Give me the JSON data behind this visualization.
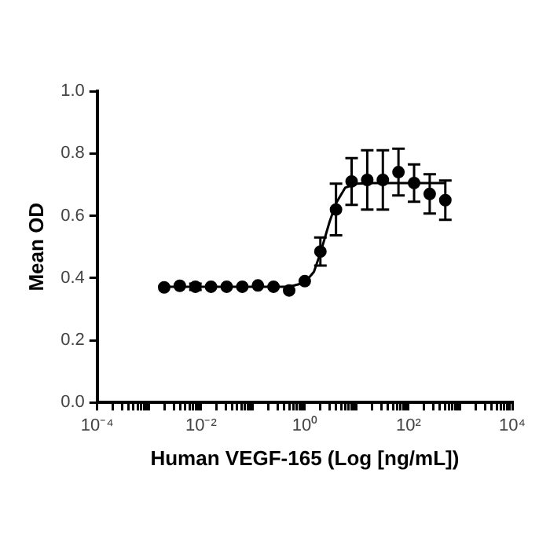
{
  "chart_data": {
    "type": "scatter",
    "xlabel": "Human VEGF-165 (Log [ng/mL])",
    "ylabel": "Mean OD",
    "log": "x",
    "grid": false,
    "legend": false,
    "marker": "circle",
    "xlim": [
      0.0001,
      10000
    ],
    "xticks": [
      {
        "value": 0.0001,
        "label": "10⁻⁴"
      },
      {
        "value": 0.0002,
        "label": null
      },
      {
        "value": 0.0003,
        "label": null
      },
      {
        "value": 0.0004,
        "label": null
      },
      {
        "value": 0.0005,
        "label": null
      },
      {
        "value": 0.0006,
        "label": null
      },
      {
        "value": 0.0007,
        "label": null
      },
      {
        "value": 0.0008,
        "label": null
      },
      {
        "value": 0.0009,
        "label": null
      },
      {
        "value": 0.001,
        "label": null
      },
      {
        "value": 0.002,
        "label": null
      },
      {
        "value": 0.003,
        "label": null
      },
      {
        "value": 0.004,
        "label": null
      },
      {
        "value": 0.005,
        "label": null
      },
      {
        "value": 0.006,
        "label": null
      },
      {
        "value": 0.007,
        "label": null
      },
      {
        "value": 0.008,
        "label": null
      },
      {
        "value": 0.009,
        "label": null
      },
      {
        "value": 0.01,
        "label": "10⁻²"
      },
      {
        "value": 0.02,
        "label": null
      },
      {
        "value": 0.03,
        "label": null
      },
      {
        "value": 0.04,
        "label": null
      },
      {
        "value": 0.05,
        "label": null
      },
      {
        "value": 0.06,
        "label": null
      },
      {
        "value": 0.07,
        "label": null
      },
      {
        "value": 0.08,
        "label": null
      },
      {
        "value": 0.09,
        "label": null
      },
      {
        "value": 0.1,
        "label": null
      },
      {
        "value": 0.2,
        "label": null
      },
      {
        "value": 0.3,
        "label": null
      },
      {
        "value": 0.4,
        "label": null
      },
      {
        "value": 0.5,
        "label": null
      },
      {
        "value": 0.6,
        "label": null
      },
      {
        "value": 0.7,
        "label": null
      },
      {
        "value": 0.8,
        "label": null
      },
      {
        "value": 0.9,
        "label": null
      },
      {
        "value": 1,
        "label": "10⁰"
      },
      {
        "value": 2,
        "label": null
      },
      {
        "value": 3,
        "label": null
      },
      {
        "value": 4,
        "label": null
      },
      {
        "value": 5,
        "label": null
      },
      {
        "value": 6,
        "label": null
      },
      {
        "value": 7,
        "label": null
      },
      {
        "value": 8,
        "label": null
      },
      {
        "value": 9,
        "label": null
      },
      {
        "value": 10,
        "label": null
      },
      {
        "value": 20,
        "label": null
      },
      {
        "value": 30,
        "label": null
      },
      {
        "value": 40,
        "label": null
      },
      {
        "value": 50,
        "label": null
      },
      {
        "value": 60,
        "label": null
      },
      {
        "value": 70,
        "label": null
      },
      {
        "value": 80,
        "label": null
      },
      {
        "value": 90,
        "label": null
      },
      {
        "value": 100,
        "label": "10²"
      },
      {
        "value": 200,
        "label": null
      },
      {
        "value": 300,
        "label": null
      },
      {
        "value": 400,
        "label": null
      },
      {
        "value": 500,
        "label": null
      },
      {
        "value": 600,
        "label": null
      },
      {
        "value": 700,
        "label": null
      },
      {
        "value": 800,
        "label": null
      },
      {
        "value": 900,
        "label": null
      },
      {
        "value": 1000,
        "label": null
      },
      {
        "value": 2000,
        "label": null
      },
      {
        "value": 3000,
        "label": null
      },
      {
        "value": 4000,
        "label": null
      },
      {
        "value": 5000,
        "label": null
      },
      {
        "value": 6000,
        "label": null
      },
      {
        "value": 7000,
        "label": null
      },
      {
        "value": 8000,
        "label": null
      },
      {
        "value": 9000,
        "label": null
      },
      {
        "value": 10000,
        "label": "10⁴"
      }
    ],
    "ylim": [
      0,
      1
    ],
    "yticks": [
      {
        "value": 0,
        "label": "0.0"
      },
      {
        "value": 0.2,
        "label": "0.2"
      },
      {
        "value": 0.4,
        "label": "0.4"
      },
      {
        "value": 0.6,
        "label": "0.6"
      },
      {
        "value": 0.8,
        "label": "0.8"
      },
      {
        "value": 1,
        "label": "1.0"
      }
    ],
    "series": [
      {
        "color": "#000000",
        "x": [
          0.00195,
          0.0039,
          0.0078,
          0.0156,
          0.03125,
          0.0625,
          0.125,
          0.25,
          0.5,
          1,
          2,
          4,
          8,
          16,
          32,
          64,
          128,
          256,
          512
        ],
        "values": [
          0.37,
          0.375,
          0.372,
          0.372,
          0.372,
          0.372,
          0.376,
          0.372,
          0.36,
          0.39,
          0.485,
          0.62,
          0.71,
          0.715,
          0.715,
          0.74,
          0.705,
          0.67,
          0.65
        ],
        "errors": [
          null,
          null,
          0.01,
          null,
          null,
          null,
          null,
          null,
          null,
          null,
          0.045,
          0.083,
          0.075,
          0.095,
          0.095,
          0.075,
          0.06,
          0.063,
          0.063
        ]
      },
      {
        "type": "line",
        "color": "#000000",
        "marker": "none",
        "x": [
          0.00195,
          0.5,
          1,
          1.5,
          2,
          3,
          4,
          6,
          10,
          20,
          512
        ],
        "values": [
          0.372,
          0.372,
          0.385,
          0.42,
          0.48,
          0.58,
          0.64,
          0.69,
          0.703,
          0.705,
          0.705
        ]
      }
    ]
  }
}
